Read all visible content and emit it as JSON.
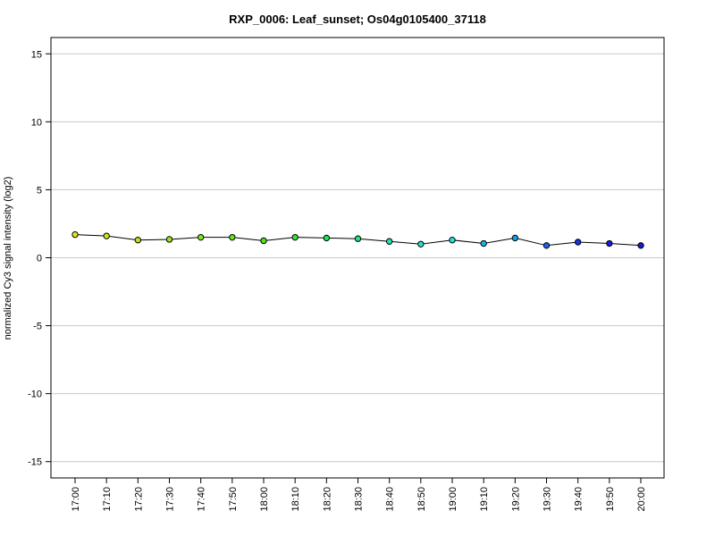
{
  "chart_data": {
    "type": "line",
    "title": "RXP_0006: Leaf_sunset; Os04g0105400_37118",
    "xlabel": "",
    "ylabel": "normalized Cy3 signal intensity (log2)",
    "ylim": [
      -16.2,
      16.2
    ],
    "yticks": [
      -15,
      -10,
      -5,
      0,
      5,
      10,
      15
    ],
    "ytick_labels": [
      "-15",
      "-10",
      "-5",
      "0",
      "5",
      "10",
      "15"
    ],
    "grid": true,
    "categories": [
      "17:00",
      "17:10",
      "17:20",
      "17:30",
      "17:40",
      "17:50",
      "18:00",
      "18:10",
      "18:20",
      "18:30",
      "18:40",
      "18:50",
      "19:00",
      "19:10",
      "19:20",
      "19:30",
      "19:40",
      "19:50",
      "20:00"
    ],
    "series": [
      {
        "values": [
          1.7,
          1.6,
          1.3,
          1.35,
          1.5,
          1.5,
          1.25,
          1.5,
          1.45,
          1.4,
          1.2,
          1.0,
          1.3,
          1.05,
          1.45,
          0.9,
          1.15,
          1.05,
          0.9
        ],
        "point_colors": [
          "#e6e61a",
          "#cce61a",
          "#b3e61a",
          "#99e61a",
          "#80e61a",
          "#66e61a",
          "#4de61a",
          "#33e633",
          "#1ae64d",
          "#1ae680",
          "#1ae6b3",
          "#1ae6cc",
          "#1ae6e6",
          "#1ab3e6",
          "#1a99e6",
          "#1a66e6",
          "#1a33e6",
          "#1a1ae6",
          "#1a1acc"
        ]
      }
    ]
  }
}
